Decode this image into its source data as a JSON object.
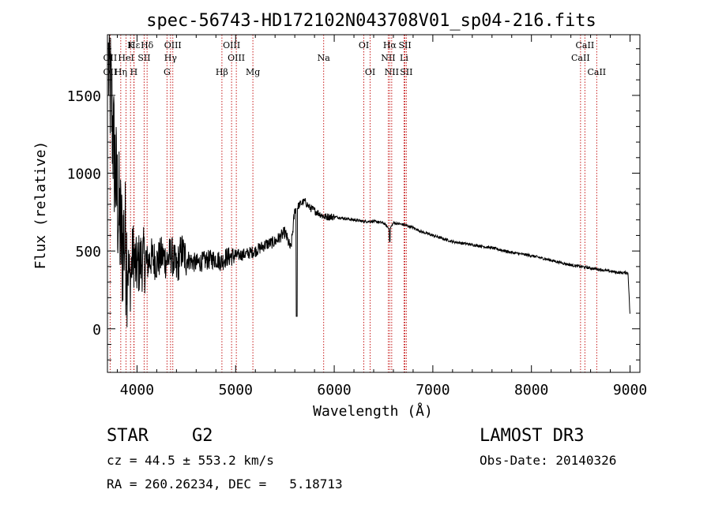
{
  "chart_data": {
    "type": "line",
    "title": "spec-56743-HD172102N043708V01_sp04-216.fits",
    "xlabel": "Wavelength (Å)",
    "ylabel": "Flux (relative)",
    "xlim": [
      3700,
      9100
    ],
    "ylim": [
      -280,
      1890
    ],
    "x_ticks": [
      4000,
      5000,
      6000,
      7000,
      8000,
      9000
    ],
    "x_tick_labels": [
      "4000",
      "5000",
      "6000",
      "7000",
      "8000",
      "9000"
    ],
    "y_ticks": [
      0,
      500,
      1000,
      1500
    ],
    "y_tick_labels": [
      "0",
      "500",
      "1000",
      "1500"
    ],
    "series": [
      {
        "name": "flux",
        "color": "#000000",
        "x": [
          3710,
          3740,
          3760,
          3790,
          3820,
          3850,
          3870,
          3900,
          3930,
          3960,
          3990,
          4020,
          4060,
          4100,
          4150,
          4200,
          4250,
          4300,
          4350,
          4400,
          4450,
          4500,
          4600,
          4700,
          4800,
          4860,
          4900,
          5000,
          5100,
          5200,
          5300,
          5400,
          5500,
          5560,
          5600,
          5650,
          5700,
          5750,
          5800,
          5850,
          5900,
          6000,
          6100,
          6200,
          6300,
          6400,
          6500,
          6563,
          6600,
          6700,
          6800,
          6900,
          7000,
          7200,
          7400,
          7600,
          7800,
          8000,
          8200,
          8400,
          8500,
          8600,
          8700,
          8800,
          8900,
          8980,
          9000
        ],
        "y": [
          1700,
          1450,
          1200,
          900,
          700,
          520,
          600,
          450,
          300,
          500,
          380,
          420,
          450,
          420,
          460,
          430,
          470,
          440,
          480,
          380,
          500,
          450,
          420,
          440,
          450,
          430,
          460,
          470,
          480,
          500,
          540,
          560,
          620,
          510,
          760,
          800,
          820,
          780,
          760,
          740,
          720,
          720,
          710,
          700,
          690,
          690,
          680,
          640,
          680,
          670,
          650,
          620,
          600,
          560,
          540,
          520,
          490,
          470,
          440,
          410,
          400,
          390,
          380,
          370,
          360,
          360,
          80
        ]
      }
    ],
    "line_labels": [
      {
        "name": "Hε",
        "row": 0,
        "x": 3970
      },
      {
        "name": "K",
        "row": 0,
        "x": 3934
      },
      {
        "name": "Hδ",
        "row": 0,
        "x": 4102
      },
      {
        "name": "OIII",
        "row": 0,
        "x": 4363
      },
      {
        "name": "OIII",
        "row": 0,
        "x": 4959
      },
      {
        "name": "OI",
        "row": 0,
        "x": 6300
      },
      {
        "name": "Hα",
        "row": 0,
        "x": 6563
      },
      {
        "name": "SII",
        "row": 0,
        "x": 6717
      },
      {
        "name": "CaII",
        "row": 0,
        "x": 8542
      },
      {
        "name": "OII",
        "row": 1,
        "x": 3727
      },
      {
        "name": "HeI",
        "row": 1,
        "x": 3889
      },
      {
        "name": "SII",
        "row": 1,
        "x": 4072
      },
      {
        "name": "Hγ",
        "row": 1,
        "x": 4340
      },
      {
        "name": "OIII",
        "row": 1,
        "x": 5007
      },
      {
        "name": "Na",
        "row": 1,
        "x": 5893
      },
      {
        "name": "NII",
        "row": 1,
        "x": 6548
      },
      {
        "name": "Li",
        "row": 1,
        "x": 6708
      },
      {
        "name": "CaII",
        "row": 1,
        "x": 8498
      },
      {
        "name": "OII",
        "row": 2,
        "x": 3727
      },
      {
        "name": "Hη",
        "row": 2,
        "x": 3835
      },
      {
        "name": "H",
        "row": 2,
        "x": 3968
      },
      {
        "name": "G",
        "row": 2,
        "x": 4304
      },
      {
        "name": "Hβ",
        "row": 2,
        "x": 4861
      },
      {
        "name": "Mg",
        "row": 2,
        "x": 5175
      },
      {
        "name": "OI",
        "row": 2,
        "x": 6364
      },
      {
        "name": "NII",
        "row": 2,
        "x": 6583
      },
      {
        "name": "SII",
        "row": 2,
        "x": 6731
      },
      {
        "name": "CaII",
        "row": 2,
        "x": 8662
      }
    ],
    "reference_line_color": "#c00000"
  },
  "info": {
    "object_type": "STAR",
    "subclass": "G2",
    "survey": "LAMOST DR3",
    "redshift": "cz = 44.5 ± 553.2 km/s",
    "obs_date": "Obs-Date: 20140326",
    "coords": "RA = 260.26234, DEC =   5.18713"
  }
}
